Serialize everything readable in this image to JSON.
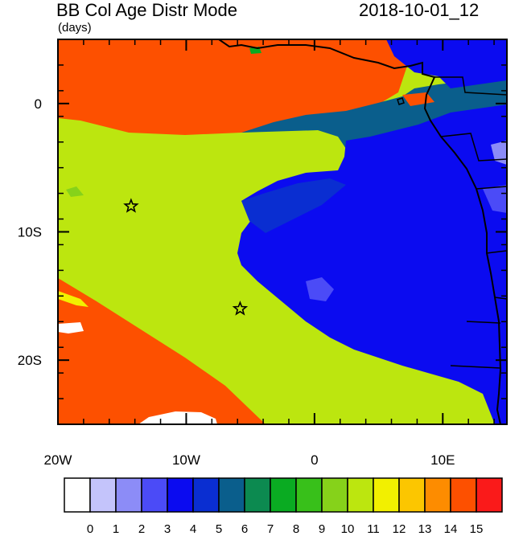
{
  "header": {
    "title": "BB Col Age Distr Mode",
    "units": "(days)",
    "datetime": "2018-10-01_12"
  },
  "map": {
    "lon_ticks": [
      {
        "label": "20W",
        "lon": -20
      },
      {
        "label": "10W",
        "lon": -10
      },
      {
        "label": "0",
        "lon": 0
      },
      {
        "label": "10E",
        "lon": 10
      }
    ],
    "lat_ticks": [
      {
        "label": "0",
        "lat": 0
      },
      {
        "label": "10S",
        "lat": -10
      },
      {
        "label": "20S",
        "lat": -20
      }
    ],
    "lon_range": [
      -20,
      15
    ],
    "lat_range": [
      -25,
      5
    ],
    "markers": [
      {
        "type": "star",
        "lon": -14.3,
        "lat": -8.0
      },
      {
        "type": "star",
        "lon": -5.8,
        "lat": -16.0
      }
    ]
  },
  "colorbar": {
    "labels": [
      "0",
      "1",
      "2",
      "3",
      "4",
      "5",
      "6",
      "7",
      "8",
      "9",
      "10",
      "11",
      "12",
      "13",
      "14",
      "15"
    ],
    "colors": [
      "#ffffff",
      "#c4c4fb",
      "#8c8cf7",
      "#4b4bf7",
      "#0b0bf0",
      "#0a2ed1",
      "#0a5e8c",
      "#0c8a50",
      "#0aab22",
      "#38c01a",
      "#86d21a",
      "#bce60f",
      "#f2f000",
      "#fcc600",
      "#fd8c00",
      "#fd5000",
      "#fa1a1a"
    ]
  }
}
